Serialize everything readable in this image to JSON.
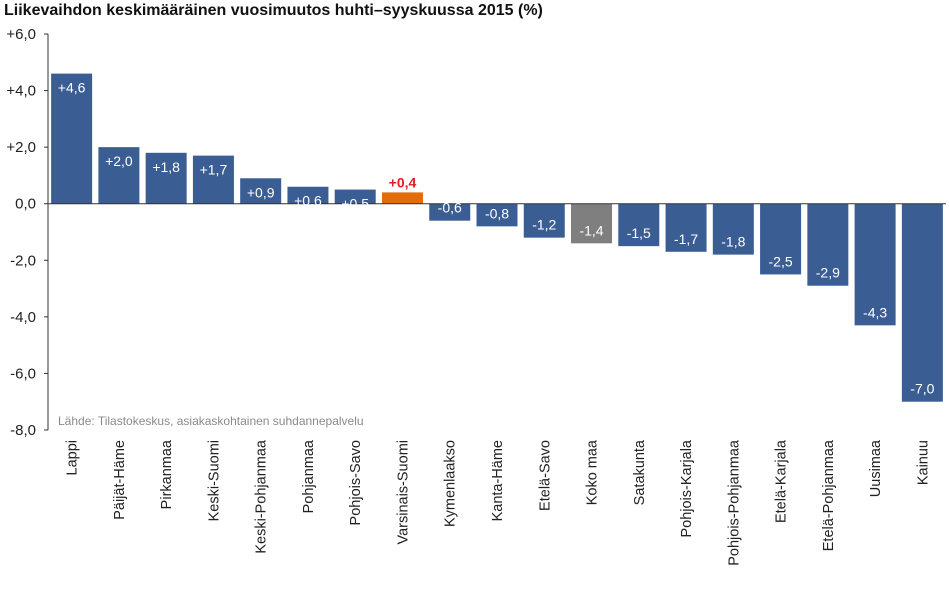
{
  "chart_data": {
    "type": "bar",
    "title": "Liikevaihdon keskimääräinen vuosimuutos huhti–syyskuussa 2015 (%)",
    "source": "Lähde: Tilastokeskus, asiakaskohtainen suhdannepalvelu",
    "categories": [
      "Lappi",
      "Päijät-Häme",
      "Pirkanmaa",
      "Keski-Suomi",
      "Keski-Pohjanmaa",
      "Pohjanmaa",
      "Pohjois-Savo",
      "Varsinais-Suomi",
      "Kymenlaakso",
      "Kanta-Häme",
      "Etelä-Savo",
      "Koko maa",
      "Satakunta",
      "Pohjois-Karjala",
      "Pohjois-Pohjanmaa",
      "Etelä-Karjala",
      "Etelä-Pohjanmaa",
      "Uusimaa",
      "Kainuu"
    ],
    "values": [
      4.6,
      2.0,
      1.8,
      1.7,
      0.9,
      0.6,
      0.5,
      0.4,
      -0.6,
      -0.8,
      -1.2,
      -1.4,
      -1.5,
      -1.7,
      -1.8,
      -2.5,
      -2.9,
      -4.3,
      -7.0
    ],
    "data_labels": [
      "+4,6",
      "+2,0",
      "+1,8",
      "+1,7",
      "+0,9",
      "+0,6",
      "+0,5",
      "+0,4",
      "-0,6",
      "-0,8",
      "-1,2",
      "-1,4",
      "-1,5",
      "-1,7",
      "-1,8",
      "-2,5",
      "-2,9",
      "-4,3",
      "-7,0"
    ],
    "ylim": [
      -8,
      6
    ],
    "yticks": [
      6,
      4,
      2,
      0,
      -2,
      -4,
      -6,
      -8
    ],
    "ytick_labels": [
      "+6,0",
      "+4,0",
      "+2,0",
      "0,0",
      "-2,0",
      "-4,0",
      "-6,0",
      "-8,0"
    ],
    "grid": false,
    "colors": {
      "default": "#3a5e94",
      "highlight": "#e36c0a",
      "total": "#7f7f7f",
      "highlight_label": "#e11b22",
      "inside_label": "#ffffff"
    },
    "highlight_category": "Varsinais-Suomi",
    "total_category": "Koko maa"
  }
}
